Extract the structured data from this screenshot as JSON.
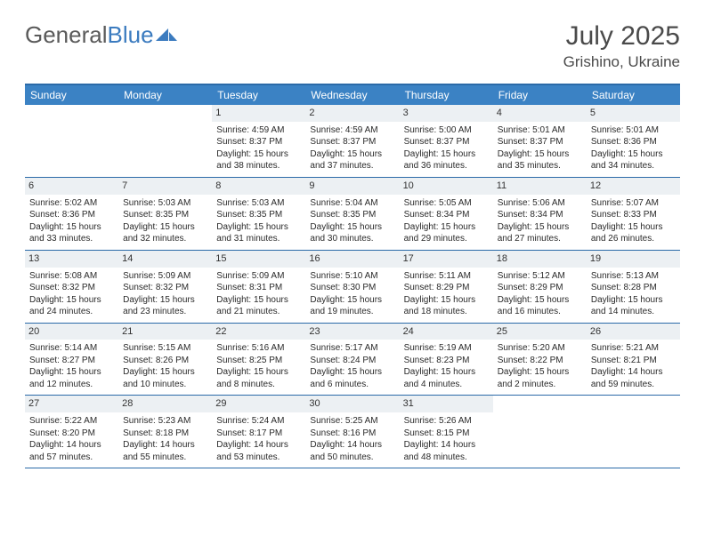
{
  "logo": {
    "text_gray": "General",
    "text_blue": "Blue",
    "mark_color": "#3b7bbf"
  },
  "title": "July 2025",
  "location": "Grishino, Ukraine",
  "colors": {
    "header_bg": "#3b82c4",
    "header_text": "#ffffff",
    "border": "#2b6aa8",
    "daynum_bg": "#ecf0f3",
    "text": "#2a2a2a",
    "page_bg": "#ffffff"
  },
  "day_headers": [
    "Sunday",
    "Monday",
    "Tuesday",
    "Wednesday",
    "Thursday",
    "Friday",
    "Saturday"
  ],
  "weeks": [
    [
      null,
      null,
      {
        "n": "1",
        "sr": "4:59 AM",
        "ss": "8:37 PM",
        "dl": "15 hours and 38 minutes."
      },
      {
        "n": "2",
        "sr": "4:59 AM",
        "ss": "8:37 PM",
        "dl": "15 hours and 37 minutes."
      },
      {
        "n": "3",
        "sr": "5:00 AM",
        "ss": "8:37 PM",
        "dl": "15 hours and 36 minutes."
      },
      {
        "n": "4",
        "sr": "5:01 AM",
        "ss": "8:37 PM",
        "dl": "15 hours and 35 minutes."
      },
      {
        "n": "5",
        "sr": "5:01 AM",
        "ss": "8:36 PM",
        "dl": "15 hours and 34 minutes."
      }
    ],
    [
      {
        "n": "6",
        "sr": "5:02 AM",
        "ss": "8:36 PM",
        "dl": "15 hours and 33 minutes."
      },
      {
        "n": "7",
        "sr": "5:03 AM",
        "ss": "8:35 PM",
        "dl": "15 hours and 32 minutes."
      },
      {
        "n": "8",
        "sr": "5:03 AM",
        "ss": "8:35 PM",
        "dl": "15 hours and 31 minutes."
      },
      {
        "n": "9",
        "sr": "5:04 AM",
        "ss": "8:35 PM",
        "dl": "15 hours and 30 minutes."
      },
      {
        "n": "10",
        "sr": "5:05 AM",
        "ss": "8:34 PM",
        "dl": "15 hours and 29 minutes."
      },
      {
        "n": "11",
        "sr": "5:06 AM",
        "ss": "8:34 PM",
        "dl": "15 hours and 27 minutes."
      },
      {
        "n": "12",
        "sr": "5:07 AM",
        "ss": "8:33 PM",
        "dl": "15 hours and 26 minutes."
      }
    ],
    [
      {
        "n": "13",
        "sr": "5:08 AM",
        "ss": "8:32 PM",
        "dl": "15 hours and 24 minutes."
      },
      {
        "n": "14",
        "sr": "5:09 AM",
        "ss": "8:32 PM",
        "dl": "15 hours and 23 minutes."
      },
      {
        "n": "15",
        "sr": "5:09 AM",
        "ss": "8:31 PM",
        "dl": "15 hours and 21 minutes."
      },
      {
        "n": "16",
        "sr": "5:10 AM",
        "ss": "8:30 PM",
        "dl": "15 hours and 19 minutes."
      },
      {
        "n": "17",
        "sr": "5:11 AM",
        "ss": "8:29 PM",
        "dl": "15 hours and 18 minutes."
      },
      {
        "n": "18",
        "sr": "5:12 AM",
        "ss": "8:29 PM",
        "dl": "15 hours and 16 minutes."
      },
      {
        "n": "19",
        "sr": "5:13 AM",
        "ss": "8:28 PM",
        "dl": "15 hours and 14 minutes."
      }
    ],
    [
      {
        "n": "20",
        "sr": "5:14 AM",
        "ss": "8:27 PM",
        "dl": "15 hours and 12 minutes."
      },
      {
        "n": "21",
        "sr": "5:15 AM",
        "ss": "8:26 PM",
        "dl": "15 hours and 10 minutes."
      },
      {
        "n": "22",
        "sr": "5:16 AM",
        "ss": "8:25 PM",
        "dl": "15 hours and 8 minutes."
      },
      {
        "n": "23",
        "sr": "5:17 AM",
        "ss": "8:24 PM",
        "dl": "15 hours and 6 minutes."
      },
      {
        "n": "24",
        "sr": "5:19 AM",
        "ss": "8:23 PM",
        "dl": "15 hours and 4 minutes."
      },
      {
        "n": "25",
        "sr": "5:20 AM",
        "ss": "8:22 PM",
        "dl": "15 hours and 2 minutes."
      },
      {
        "n": "26",
        "sr": "5:21 AM",
        "ss": "8:21 PM",
        "dl": "14 hours and 59 minutes."
      }
    ],
    [
      {
        "n": "27",
        "sr": "5:22 AM",
        "ss": "8:20 PM",
        "dl": "14 hours and 57 minutes."
      },
      {
        "n": "28",
        "sr": "5:23 AM",
        "ss": "8:18 PM",
        "dl": "14 hours and 55 minutes."
      },
      {
        "n": "29",
        "sr": "5:24 AM",
        "ss": "8:17 PM",
        "dl": "14 hours and 53 minutes."
      },
      {
        "n": "30",
        "sr": "5:25 AM",
        "ss": "8:16 PM",
        "dl": "14 hours and 50 minutes."
      },
      {
        "n": "31",
        "sr": "5:26 AM",
        "ss": "8:15 PM",
        "dl": "14 hours and 48 minutes."
      },
      null,
      null
    ]
  ],
  "labels": {
    "sunrise": "Sunrise: ",
    "sunset": "Sunset: ",
    "daylight": "Daylight: "
  }
}
